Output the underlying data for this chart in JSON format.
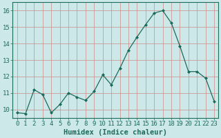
{
  "x": [
    0,
    1,
    2,
    3,
    4,
    5,
    6,
    7,
    8,
    9,
    10,
    11,
    12,
    13,
    14,
    15,
    16,
    17,
    18,
    19,
    20,
    21,
    22,
    23
  ],
  "y": [
    9.8,
    9.75,
    11.2,
    10.9,
    9.8,
    10.3,
    11.0,
    10.75,
    10.55,
    11.1,
    12.1,
    11.5,
    12.5,
    13.6,
    14.4,
    15.15,
    15.85,
    16.0,
    15.25,
    13.85,
    12.3,
    12.3,
    11.9,
    10.5
  ],
  "xlabel": "Humidex (Indice chaleur)",
  "ylim": [
    9.5,
    16.5
  ],
  "xlim": [
    -0.5,
    23.5
  ],
  "yticks": [
    10,
    11,
    12,
    13,
    14,
    15,
    16
  ],
  "xticks": [
    0,
    1,
    2,
    3,
    4,
    5,
    6,
    7,
    8,
    9,
    10,
    11,
    12,
    13,
    14,
    15,
    16,
    17,
    18,
    19,
    20,
    21,
    22,
    23
  ],
  "line_color": "#1a6b5a",
  "marker": "D",
  "marker_size": 2.0,
  "bg_color": "#cce8e8",
  "grid_color": "#cc8888",
  "axes_color": "#1a6b5a",
  "tick_label_fontsize": 6.5,
  "xlabel_fontsize": 7.5,
  "linewidth": 0.9
}
